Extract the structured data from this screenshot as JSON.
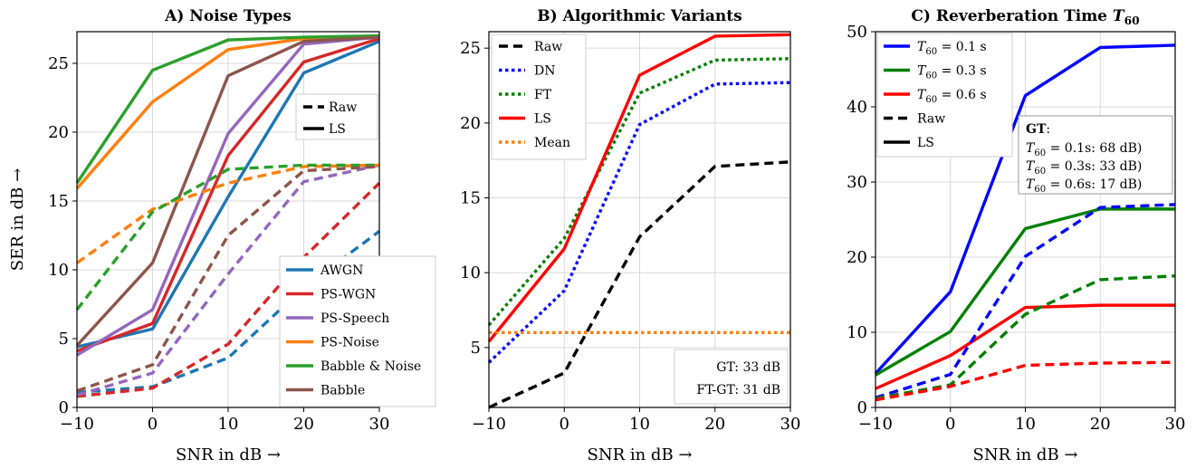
{
  "chart_data": [
    {
      "type": "line",
      "title": "A) Noise Types",
      "xlabel": "SNR in dB →",
      "ylabel": "SER in dB →",
      "x": [
        -10,
        0,
        10,
        20,
        30
      ],
      "xlim": [
        -10,
        30
      ],
      "ylim": [
        0,
        27.3
      ],
      "xticks": [
        "−10",
        "0",
        "10",
        "20",
        "30"
      ],
      "yticks": [
        "0",
        "5",
        "10",
        "15",
        "20",
        "25"
      ],
      "xtick_values": [
        -10,
        0,
        10,
        20,
        30
      ],
      "ytick_values": [
        0,
        5,
        10,
        15,
        20,
        25
      ],
      "grid": true,
      "series": [
        {
          "name": "AWGN",
          "color": "#1f77b4",
          "style": "solid",
          "values": [
            4.4,
            5.7,
            15.3,
            24.3,
            26.6
          ]
        },
        {
          "name": "PS-WGN",
          "color": "#d62728",
          "style": "solid",
          "values": [
            4.1,
            6.1,
            18.3,
            25.1,
            26.8
          ]
        },
        {
          "name": "PS-Speech",
          "color": "#9467bd",
          "style": "solid",
          "values": [
            3.8,
            7.1,
            19.9,
            26.4,
            26.9
          ]
        },
        {
          "name": "PS-Noise",
          "color": "#ff7f0e",
          "style": "solid",
          "values": [
            15.9,
            22.2,
            26.0,
            26.8,
            27.0
          ]
        },
        {
          "name": "Babble & Noise",
          "color": "#2ca02c",
          "style": "solid",
          "values": [
            16.3,
            24.5,
            26.7,
            26.9,
            27.0
          ]
        },
        {
          "name": "Babble",
          "color": "#8c564b",
          "style": "solid",
          "values": [
            4.5,
            10.5,
            24.1,
            26.6,
            26.9
          ]
        },
        {
          "color": "#1f77b4",
          "style": "dashed",
          "values": [
            1.1,
            1.5,
            3.6,
            8.7,
            12.8
          ]
        },
        {
          "color": "#d62728",
          "style": "dashed",
          "values": [
            0.8,
            1.4,
            4.6,
            10.9,
            16.3
          ]
        },
        {
          "color": "#9467bd",
          "style": "dashed",
          "values": [
            0.9,
            2.5,
            9.7,
            16.4,
            17.6
          ]
        },
        {
          "color": "#ff7f0e",
          "style": "dashed",
          "values": [
            10.5,
            14.4,
            16.3,
            17.5,
            17.6
          ]
        },
        {
          "color": "#2ca02c",
          "style": "dashed",
          "values": [
            7.1,
            14.2,
            17.3,
            17.6,
            17.6
          ]
        },
        {
          "color": "#8c564b",
          "style": "dashed",
          "values": [
            1.2,
            3.1,
            12.5,
            17.2,
            17.5
          ]
        }
      ],
      "style_legend": [
        {
          "label": "Raw",
          "style": "dashed"
        },
        {
          "label": "LS",
          "style": "solid"
        }
      ],
      "legend_placement": "lower-right"
    },
    {
      "type": "line",
      "title": "B) Algorithmic Variants",
      "xlabel": "SNR in dB →",
      "ylabel": "",
      "x": [
        -10,
        0,
        10,
        20,
        30
      ],
      "xlim": [
        -10,
        30
      ],
      "ylim": [
        1,
        26.1
      ],
      "xticks": [
        "−10",
        "0",
        "10",
        "20",
        "30"
      ],
      "yticks": [
        "5",
        "10",
        "15",
        "20",
        "25"
      ],
      "xtick_values": [
        -10,
        0,
        10,
        20,
        30
      ],
      "ytick_values": [
        5,
        10,
        15,
        20,
        25
      ],
      "grid": true,
      "series": [
        {
          "name": "Raw",
          "color": "#000000",
          "style": "dashed",
          "values": [
            1.0,
            3.3,
            12.4,
            17.1,
            17.4
          ]
        },
        {
          "name": "DN",
          "color": "#0000ff",
          "style": "dotted",
          "values": [
            4.0,
            8.8,
            19.9,
            22.6,
            22.7
          ]
        },
        {
          "name": "FT",
          "color": "#008000",
          "style": "dotted",
          "values": [
            6.5,
            12.3,
            22.0,
            24.2,
            24.3
          ]
        },
        {
          "name": "LS",
          "color": "#ff0000",
          "style": "solid",
          "values": [
            5.4,
            11.6,
            23.2,
            25.8,
            25.9
          ]
        },
        {
          "name": "Mean",
          "color": "#ff7f0e",
          "style": "dotted",
          "values": [
            6.0,
            6.0,
            6.0,
            6.0,
            6.0
          ]
        }
      ],
      "legend_placement": "top-left",
      "annotations": [
        "GT: 33 dB",
        "FT-GT: 31 dB"
      ]
    },
    {
      "type": "line",
      "title": "C) Reverberation Time",
      "title_math": "T",
      "title_math_sub": "60",
      "xlabel": "SNR in dB →",
      "ylabel": "",
      "x": [
        -10,
        0,
        10,
        20,
        30
      ],
      "xlim": [
        -10,
        30
      ],
      "ylim": [
        0,
        50
      ],
      "xticks": [
        "−10",
        "0",
        "10",
        "20",
        "30"
      ],
      "yticks": [
        "0",
        "10",
        "20",
        "30",
        "40",
        "50"
      ],
      "xtick_values": [
        -10,
        0,
        10,
        20,
        30
      ],
      "ytick_values": [
        0,
        10,
        20,
        30,
        40,
        50
      ],
      "grid": true,
      "series": [
        {
          "name": "T60 = 0.1 s",
          "name_parts": [
            "T",
            "60",
            " = 0.1 s"
          ],
          "color": "#0000ff",
          "style": "solid",
          "values": [
            4.5,
            15.4,
            41.5,
            47.9,
            48.2
          ]
        },
        {
          "name": "T60 = 0.3 s",
          "name_parts": [
            "T",
            "60",
            " = 0.3 s"
          ],
          "color": "#008000",
          "style": "solid",
          "values": [
            4.3,
            10.1,
            23.8,
            26.4,
            26.4
          ]
        },
        {
          "name": "T60 = 0.6 s",
          "name_parts": [
            "T",
            "60",
            " = 0.6 s"
          ],
          "color": "#ff0000",
          "style": "solid",
          "values": [
            2.5,
            6.9,
            13.3,
            13.6,
            13.6
          ]
        },
        {
          "color": "#0000ff",
          "style": "dashed",
          "values": [
            1.3,
            4.4,
            20.1,
            26.6,
            27.0
          ]
        },
        {
          "color": "#008000",
          "style": "dashed",
          "values": [
            1.2,
            3.0,
            12.4,
            17.0,
            17.5
          ]
        },
        {
          "color": "#ff0000",
          "style": "dashed",
          "values": [
            1.0,
            2.8,
            5.6,
            5.9,
            6.0
          ]
        }
      ],
      "style_legend": [
        {
          "label": "Raw",
          "style": "dashed"
        },
        {
          "label": "LS",
          "style": "solid"
        }
      ],
      "legend_placement": "top-left",
      "gt_box": {
        "heading": "GT",
        "heading_suffix": ":",
        "lines": [
          {
            "math": "T",
            "sub": "60",
            "text": " = 0.1s: 68 dB)"
          },
          {
            "math": "T",
            "sub": "60",
            "text": " = 0.3s: 33 dB)"
          },
          {
            "math": "T",
            "sub": "60",
            "text": " = 0.6s: 17 dB)"
          }
        ]
      }
    }
  ]
}
